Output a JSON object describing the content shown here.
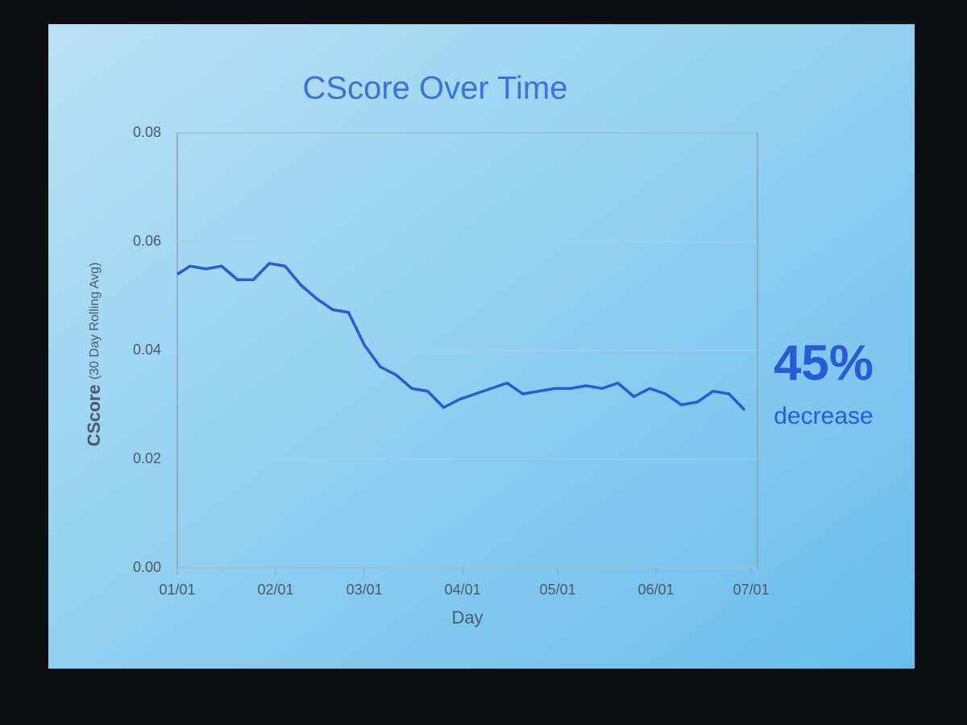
{
  "chart_data": {
    "type": "line",
    "title": "CScore Over Time",
    "ylabel": "CScore",
    "ylabel_note": "(30 Day Rolling Avg)",
    "xlabel": "Day",
    "callout": "45%",
    "callout_note": "decrease",
    "x": [
      "01/01",
      "01/05",
      "01/10",
      "01/15",
      "01/20",
      "01/25",
      "01/30",
      "02/04",
      "02/09",
      "02/14",
      "02/19",
      "02/24",
      "03/01",
      "03/06",
      "03/11",
      "03/16",
      "03/21",
      "03/26",
      "03/31",
      "04/05",
      "04/10",
      "04/15",
      "04/20",
      "04/25",
      "04/30",
      "05/05",
      "05/10",
      "05/15",
      "05/20",
      "05/25",
      "05/30",
      "06/04",
      "06/09",
      "06/14",
      "06/19",
      "06/24",
      "06/29"
    ],
    "series": [
      {
        "name": "CScore",
        "color": "#2a5bd7",
        "values": [
          0.054,
          0.0555,
          0.055,
          0.0555,
          0.053,
          0.053,
          0.056,
          0.0555,
          0.052,
          0.0495,
          0.0475,
          0.047,
          0.041,
          0.037,
          0.0355,
          0.033,
          0.0325,
          0.0295,
          0.031,
          0.032,
          0.033,
          0.034,
          0.032,
          0.0325,
          0.033,
          0.033,
          0.0335,
          0.033,
          0.034,
          0.0315,
          0.033,
          0.032,
          0.03,
          0.0305,
          0.0325,
          0.032,
          0.029
        ]
      }
    ],
    "xlim": [
      "01/01",
      "07/03"
    ],
    "xticks": [
      "01/01",
      "02/01",
      "03/01",
      "04/01",
      "05/01",
      "06/01",
      "07/01"
    ],
    "ylim": [
      0,
      0.08
    ],
    "yticks": [
      {
        "value": 0,
        "label": "0.00"
      },
      0.02,
      0.04,
      0.06,
      0.08
    ],
    "grid": true
  }
}
